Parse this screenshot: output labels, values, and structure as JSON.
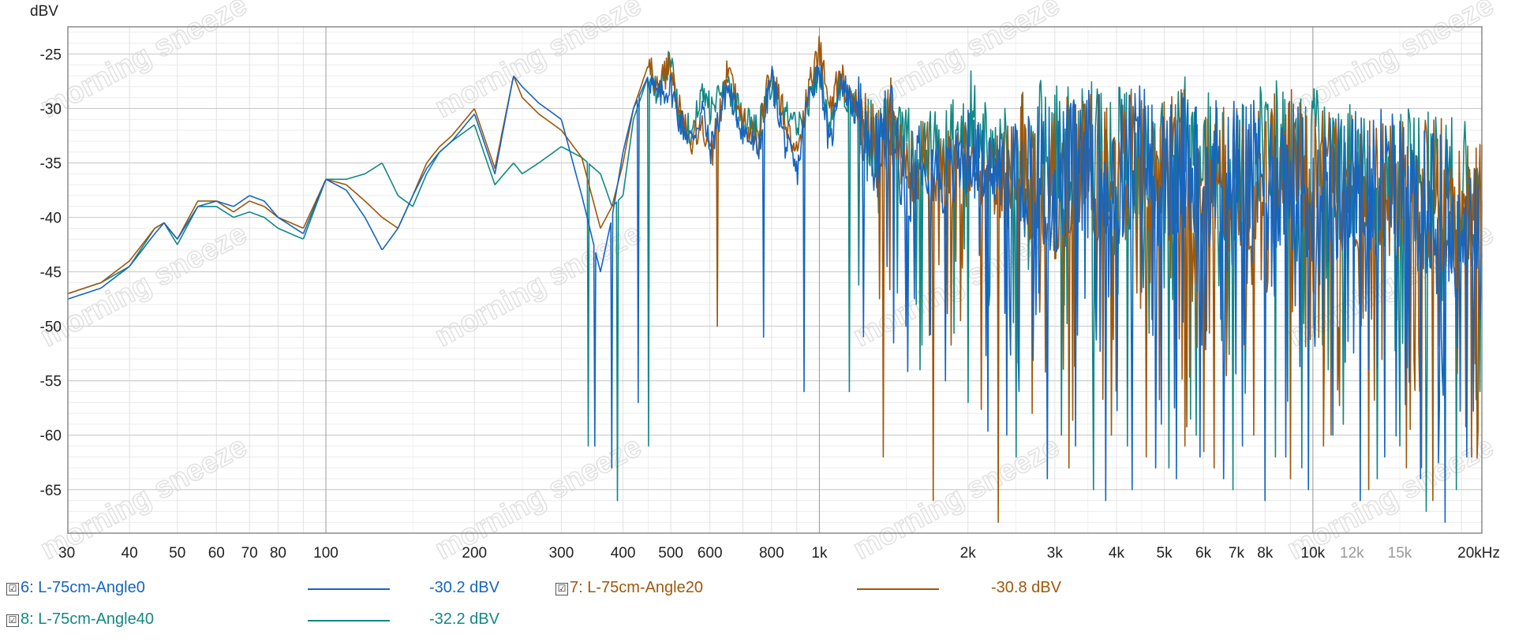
{
  "chart_data": {
    "type": "line",
    "ylabel": "dBV",
    "x_scale": "log",
    "xlim": [
      30,
      22000
    ],
    "ylim": [
      -69,
      -22.5
    ],
    "y_ticks": [
      "-25",
      "-30",
      "-35",
      "-40",
      "-45",
      "-50",
      "-55",
      "-60",
      "-65"
    ],
    "y_tick_values": [
      -25,
      -30,
      -35,
      -40,
      -45,
      -50,
      -55,
      -60,
      -65
    ],
    "x_ticks": [
      "30",
      "40",
      "50",
      "60",
      "70",
      "80",
      "100",
      "200",
      "300",
      "400",
      "500",
      "600",
      "800",
      "1k",
      "2k",
      "3k",
      "4k",
      "5k",
      "6k",
      "7k",
      "8k",
      "10k",
      "12k",
      "15k",
      "20kHz"
    ],
    "x_tick_values": [
      30,
      40,
      50,
      60,
      70,
      80,
      100,
      200,
      300,
      400,
      500,
      600,
      800,
      1000,
      2000,
      3000,
      4000,
      5000,
      6000,
      7000,
      8000,
      10000,
      12000,
      15000,
      20000
    ],
    "x_tick_muted": [
      "12k",
      "15k"
    ],
    "grid": true,
    "watermark": "morning sneeze",
    "series": [
      {
        "name": "6: L-75cm-Angle0",
        "color": "#1565c0",
        "legend_value": "-30.2 dBV",
        "checked": true,
        "x": [
          30,
          35,
          40,
          45,
          47,
          50,
          55,
          60,
          65,
          70,
          75,
          80,
          90,
          100,
          110,
          120,
          130,
          140,
          150,
          160,
          170,
          180,
          200,
          220,
          240,
          250,
          270,
          300,
          330,
          360,
          380,
          400,
          420,
          450,
          470,
          500,
          520,
          550,
          580,
          600,
          650,
          700,
          750,
          800,
          850,
          900,
          950,
          1000,
          1050,
          1100,
          1200,
          1300,
          1400,
          1500,
          1600,
          1800,
          2000,
          2200,
          2500,
          2800,
          3000,
          3500,
          4000,
          4500,
          5000,
          5500,
          6000,
          7000,
          8000,
          9000,
          10000,
          12000,
          14000,
          16000,
          18000,
          20000,
          22000
        ],
        "y": [
          -47.5,
          -46.5,
          -44.5,
          -41.5,
          -40.5,
          -42,
          -39,
          -38.5,
          -39,
          -38,
          -38.5,
          -40,
          -41.5,
          -36.5,
          -37.5,
          -40,
          -43,
          -41,
          -38,
          -35.5,
          -34,
          -33,
          -30.5,
          -36,
          -27,
          -28,
          -29.5,
          -31,
          -38,
          -45,
          -40,
          -34,
          -30,
          -27,
          -29,
          -28,
          -31,
          -33,
          -30,
          -34,
          -28,
          -32,
          -34,
          -27,
          -33,
          -36,
          -29,
          -26,
          -34,
          -27,
          -31,
          -35,
          -30,
          -38,
          -33,
          -37,
          -34,
          -36,
          -35,
          -36,
          -37,
          -35,
          -36,
          -34,
          -37,
          -35,
          -36,
          -35,
          -37,
          -36,
          -38,
          -37,
          -36,
          -38,
          -39,
          -41,
          -40
        ],
        "spikes": [
          [
            350,
            -61
          ],
          [
            380,
            -63
          ],
          [
            430,
            -57
          ],
          [
            770,
            -51
          ],
          [
            930,
            -56
          ],
          [
            1500,
            -50
          ],
          [
            1800,
            -55
          ],
          [
            2400,
            -60
          ],
          [
            2900,
            -64
          ],
          [
            3300,
            -61
          ],
          [
            3800,
            -66
          ],
          [
            4300,
            -65
          ],
          [
            4800,
            -63
          ],
          [
            5300,
            -64
          ],
          [
            5900,
            -62
          ],
          [
            6600,
            -64
          ],
          [
            7200,
            -61
          ],
          [
            8000,
            -66
          ],
          [
            8800,
            -62
          ],
          [
            9800,
            -65
          ],
          [
            11000,
            -60
          ],
          [
            12500,
            -66
          ],
          [
            14000,
            -62
          ],
          [
            16500,
            -64
          ],
          [
            18500,
            -68
          ],
          [
            20500,
            -62
          ]
        ]
      },
      {
        "name": "7: L-75cm-Angle20",
        "color": "#a0570a",
        "legend_value": "-30.8 dBV",
        "checked": true,
        "x": [
          30,
          35,
          40,
          45,
          47,
          50,
          55,
          60,
          65,
          70,
          75,
          80,
          90,
          100,
          110,
          120,
          130,
          140,
          150,
          160,
          170,
          180,
          200,
          220,
          240,
          250,
          270,
          300,
          330,
          360,
          380,
          400,
          420,
          450,
          470,
          500,
          520,
          550,
          580,
          600,
          650,
          700,
          750,
          800,
          850,
          900,
          950,
          1000,
          1050,
          1100,
          1200,
          1300,
          1400,
          1500,
          1600,
          1800,
          2000,
          2200,
          2500,
          2800,
          3000,
          3500,
          4000,
          4500,
          5000,
          5500,
          6000,
          7000,
          8000,
          9000,
          10000,
          12000,
          14000,
          16000,
          18000,
          20000,
          22000
        ],
        "y": [
          -47,
          -46,
          -44,
          -41,
          -40.5,
          -42,
          -38.5,
          -38.5,
          -39.5,
          -38.5,
          -39,
          -40,
          -41,
          -36.5,
          -37,
          -38.5,
          -40,
          -41,
          -38,
          -35,
          -33.5,
          -32.5,
          -30,
          -35.5,
          -27,
          -29,
          -30.5,
          -32,
          -34.5,
          -41,
          -39,
          -35,
          -30,
          -26,
          -28,
          -26,
          -30,
          -33,
          -31,
          -35,
          -27,
          -31,
          -33,
          -26,
          -31,
          -34,
          -28,
          -24.5,
          -30,
          -27,
          -30,
          -34,
          -31,
          -37,
          -34,
          -36,
          -35,
          -37,
          -35,
          -36,
          -37,
          -34,
          -36,
          -35,
          -36,
          -35,
          -37,
          -36,
          -36,
          -35,
          -37,
          -36,
          -37,
          -38,
          -37,
          -40,
          -39
        ],
        "spikes": [
          [
            620,
            -50
          ],
          [
            1350,
            -62
          ],
          [
            1700,
            -66
          ],
          [
            2300,
            -68
          ],
          [
            2700,
            -58
          ],
          [
            3200,
            -63
          ],
          [
            3900,
            -60
          ],
          [
            4600,
            -62
          ],
          [
            5500,
            -61
          ],
          [
            6300,
            -63
          ],
          [
            7600,
            -60
          ],
          [
            9000,
            -64
          ],
          [
            10500,
            -61
          ],
          [
            13000,
            -65
          ],
          [
            15500,
            -63
          ],
          [
            17500,
            -66
          ],
          [
            21000,
            -62
          ]
        ]
      },
      {
        "name": "8: L-75cm-Angle40",
        "color": "#128884",
        "legend_value": "-32.2 dBV",
        "checked": true,
        "x": [
          30,
          35,
          40,
          45,
          47,
          50,
          55,
          60,
          65,
          70,
          75,
          80,
          90,
          100,
          110,
          120,
          130,
          140,
          150,
          160,
          170,
          180,
          200,
          220,
          240,
          250,
          270,
          300,
          330,
          360,
          380,
          400,
          420,
          450,
          470,
          500,
          520,
          550,
          580,
          600,
          650,
          700,
          750,
          800,
          850,
          900,
          950,
          1000,
          1050,
          1100,
          1200,
          1300,
          1400,
          1500,
          1600,
          1800,
          2000,
          2200,
          2500,
          2800,
          3000,
          3500,
          4000,
          4500,
          5000,
          5500,
          6000,
          7000,
          8000,
          9000,
          10000,
          12000,
          14000,
          16000,
          18000,
          20000,
          22000
        ],
        "y": [
          -47,
          -46,
          -44.5,
          -41,
          -40.5,
          -42.5,
          -39,
          -39,
          -40,
          -39.5,
          -40,
          -41,
          -42,
          -36.5,
          -36.5,
          -36,
          -35,
          -38,
          -39,
          -36,
          -34,
          -33,
          -31.5,
          -37,
          -35,
          -36,
          -35,
          -33.5,
          -34.5,
          -36,
          -39,
          -38,
          -31,
          -27,
          -29,
          -25,
          -31,
          -32,
          -29,
          -30,
          -28,
          -31,
          -32,
          -28,
          -30,
          -32,
          -30,
          -26,
          -31,
          -28,
          -30,
          -33,
          -32,
          -34,
          -33,
          -34,
          -30,
          -33,
          -34,
          -34,
          -35,
          -33,
          -34,
          -36,
          -35,
          -34,
          -35,
          -36,
          -34,
          -35,
          -35,
          -36,
          -37,
          -36,
          -37,
          -38,
          -38
        ],
        "spikes": [
          [
            340,
            -61
          ],
          [
            390,
            -66
          ],
          [
            450,
            -61
          ],
          [
            1150,
            -56
          ],
          [
            1600,
            -54
          ],
          [
            2000,
            -57
          ],
          [
            2500,
            -62
          ],
          [
            3100,
            -60
          ],
          [
            3600,
            -65
          ],
          [
            4200,
            -61
          ],
          [
            5100,
            -63
          ],
          [
            5800,
            -60
          ],
          [
            6900,
            -65
          ],
          [
            8400,
            -62
          ],
          [
            9500,
            -63
          ],
          [
            11500,
            -59
          ],
          [
            13500,
            -64
          ],
          [
            15000,
            -61
          ],
          [
            17000,
            -67
          ],
          [
            19500,
            -65
          ]
        ]
      }
    ]
  }
}
